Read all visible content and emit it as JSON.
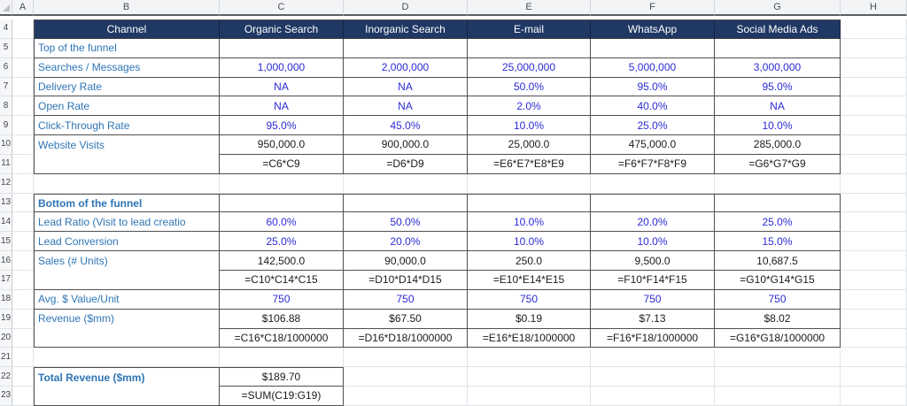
{
  "app_title": "Spreadsheet - Marketing Funnel Model",
  "colors": {
    "header_fill": "#1F3864",
    "header_text": "#FFFFFF",
    "label_text": "#2E75B6",
    "input_text": "#2B2BD5",
    "computed_text": "#1B1B1B",
    "table_border": "#505050",
    "gridline": "#E0E3E7"
  },
  "grid": {
    "column_headers": [
      "A",
      "B",
      "C",
      "D",
      "E",
      "F",
      "G",
      "H"
    ]
  },
  "sheet": {
    "value_columns": [
      "C",
      "D",
      "E",
      "F",
      "G"
    ],
    "rows": [
      {
        "num": "4",
        "kind": "header",
        "b": "Channel",
        "vals": [
          "Organic Search",
          "Inorganic Search",
          "E-mail",
          "WhatsApp",
          "Social Media Ads"
        ]
      },
      {
        "num": "5",
        "b": "Top of the funnel",
        "bstyle": "label",
        "vals": [
          "",
          "",
          "",
          "",
          ""
        ],
        "vstyle": "blank"
      },
      {
        "num": "6",
        "b": "Searches / Messages",
        "bstyle": "label",
        "vals": [
          "1,000,000",
          "2,000,000",
          "25,000,000",
          "5,000,000",
          "3,000,000"
        ],
        "vstyle": "input"
      },
      {
        "num": "7",
        "b": "Delivery Rate",
        "bstyle": "label",
        "vals": [
          "NA",
          "NA",
          "50.0%",
          "95.0%",
          "95.0%"
        ],
        "vstyle": "input"
      },
      {
        "num": "8",
        "b": "Open Rate",
        "bstyle": "label",
        "vals": [
          "NA",
          "NA",
          "2.0%",
          "40.0%",
          "NA"
        ],
        "vstyle": "input"
      },
      {
        "num": "9",
        "b": "Click-Through Rate",
        "bstyle": "label",
        "vals": [
          "95.0%",
          "45.0%",
          "10.0%",
          "25.0%",
          "10.0%"
        ],
        "vstyle": "input"
      },
      {
        "num": "10",
        "b": "Website Visits",
        "bstyle": "label",
        "bmerge": 2,
        "vals": [
          "950,000.0",
          "900,000.0",
          "25,000.0",
          "475,000.0",
          "285,000.0"
        ],
        "vstyle": "calc"
      },
      {
        "num": "11",
        "bcont": true,
        "vals": [
          "=C6*C9",
          "=D6*D9",
          "=E6*E7*E8*E9",
          "=F6*F7*F8*F9",
          "=G6*G7*G9"
        ],
        "vstyle": "formula"
      },
      {
        "num": "12",
        "gap": true
      },
      {
        "num": "13",
        "b": "Bottom of the funnel",
        "bstyle": "label-bold",
        "topEdge": true,
        "vals": [
          "",
          "",
          "",
          "",
          ""
        ],
        "vstyle": "blank"
      },
      {
        "num": "14",
        "b": "Lead Ratio (Visit to lead creatio",
        "bstyle": "label",
        "vals": [
          "60.0%",
          "50.0%",
          "10.0%",
          "20.0%",
          "25.0%"
        ],
        "vstyle": "input"
      },
      {
        "num": "15",
        "b": "Lead Conversion",
        "bstyle": "label",
        "vals": [
          "25.0%",
          "20.0%",
          "10.0%",
          "10.0%",
          "15.0%"
        ],
        "vstyle": "input"
      },
      {
        "num": "16",
        "b": "Sales (# Units)",
        "bstyle": "label",
        "bmerge": 2,
        "vals": [
          "142,500.0",
          "90,000.0",
          "250.0",
          "9,500.0",
          "10,687.5"
        ],
        "vstyle": "calc"
      },
      {
        "num": "17",
        "bcont": true,
        "vals": [
          "=C10*C14*C15",
          "=D10*D14*D15",
          "=E10*E14*E15",
          "=F10*F14*F15",
          "=G10*G14*G15"
        ],
        "vstyle": "formula"
      },
      {
        "num": "18",
        "b": "Avg. $ Value/Unit",
        "bstyle": "label",
        "vals": [
          "750",
          "750",
          "750",
          "750",
          "750"
        ],
        "vstyle": "input"
      },
      {
        "num": "19",
        "b": "Revenue ($mm)",
        "bstyle": "label",
        "bmerge": 2,
        "vals": [
          "$106.88",
          "$67.50",
          "$0.19",
          "$7.13",
          "$8.02"
        ],
        "vstyle": "calc"
      },
      {
        "num": "20",
        "bcont": true,
        "vals": [
          "=C16*C18/1000000",
          "=D16*D18/1000000",
          "=E16*E18/1000000",
          "=F16*F18/1000000",
          "=G16*G18/1000000"
        ],
        "vstyle": "formula"
      },
      {
        "num": "21",
        "gap": true
      },
      {
        "num": "22",
        "b": "Total Revenue ($mm)",
        "bstyle": "label-bold",
        "bmerge": 2,
        "topEdge": true,
        "vals": [
          "$189.70",
          null,
          null,
          null,
          null
        ],
        "vstyle": "calc"
      },
      {
        "num": "23",
        "bcont": true,
        "vals": [
          "=SUM(C19:G19)",
          null,
          null,
          null,
          null
        ],
        "vstyle": "formula"
      }
    ]
  }
}
